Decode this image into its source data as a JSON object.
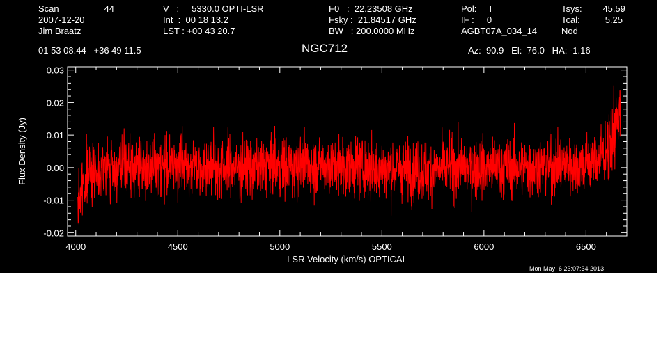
{
  "header": {
    "col1": [
      "Scan",
      "2007-12-20",
      "Jim Braatz"
    ],
    "scan_number": "44",
    "col2": [
      "V   :     5330.0 OPTI-LSR",
      "Int  :  00 18 13.2",
      "LST : +00 43 20.7"
    ],
    "col3": [
      "F0   :  22.23508 GHz",
      "Fsky :  21.84517 GHz",
      "BW   : 200.0000 MHz"
    ],
    "col4": [
      "Pol:     I",
      "IF :     0",
      "AGBT07A_034_14"
    ],
    "col5_labels": [
      "Tsys:",
      "Tcal:",
      "Nod"
    ],
    "col5_values": [
      "45.59",
      "5.25",
      ""
    ],
    "coords": "01 53 08.44   +36 49 11.5",
    "az_el_ha": "Az:  90.9   El:  76.0   HA: -1.16"
  },
  "title": "NGC712",
  "timestamp": "Mon May  6 23:07:34 2013",
  "colors": {
    "background": "#000000",
    "axes": "#ffffff",
    "series": "#ff0000"
  },
  "chart_data": {
    "type": "line",
    "title": "NGC712",
    "xlabel": "LSR Velocity (km/s) OPTICAL",
    "ylabel": "Flux Density (Jy)",
    "xlim": [
      3960,
      6700
    ],
    "ylim": [
      -0.021,
      0.031
    ],
    "x_ticks": [
      4000,
      4500,
      5000,
      5500,
      6000,
      6500
    ],
    "y_ticks": [
      -0.02,
      -0.01,
      0.0,
      0.01,
      0.02,
      0.03
    ],
    "y_tick_labels": [
      "-0.02",
      "-0.01",
      "0.00",
      "0.01",
      "0.02",
      "0.03"
    ],
    "grid": false,
    "series": [
      {
        "color": "#ff0000",
        "x_range": [
          4010,
          6670
        ],
        "points": 2600,
        "noise_rms": 0.0045,
        "baseline": [
          [
            4010,
            -0.013
          ],
          [
            4020,
            -0.009
          ],
          [
            4040,
            -0.004
          ],
          [
            4070,
            -0.001
          ],
          [
            4120,
            0.0
          ],
          [
            4300,
            0.0
          ],
          [
            4500,
            0.001
          ],
          [
            4800,
            0.0
          ],
          [
            5100,
            0.001
          ],
          [
            5400,
            0.0
          ],
          [
            5700,
            -0.001
          ],
          [
            5900,
            0.0
          ],
          [
            6200,
            0.0
          ],
          [
            6500,
            0.001
          ],
          [
            6570,
            0.003
          ],
          [
            6610,
            0.006
          ],
          [
            6640,
            0.01
          ],
          [
            6660,
            0.015
          ],
          [
            6670,
            0.019
          ]
        ]
      }
    ]
  }
}
